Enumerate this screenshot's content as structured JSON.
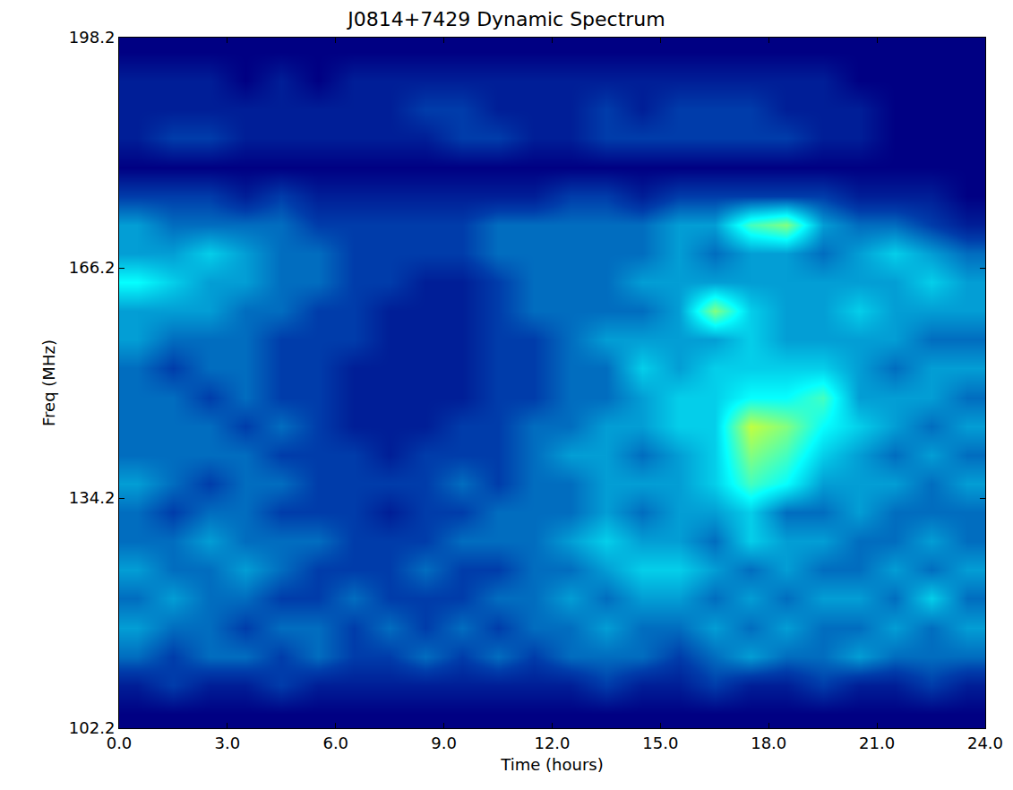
{
  "chart_data": {
    "type": "heatmap",
    "title": "J0814+7429 Dynamic Spectrum",
    "x_label": "Time (hours)",
    "y_label": "Freq (MHz)",
    "x": [
      0.5,
      1.5,
      2.5,
      3.5,
      4.5,
      5.5,
      6.5,
      7.5,
      8.5,
      9.5,
      10.5,
      11.5,
      12.5,
      13.5,
      14.5,
      15.5,
      16.5,
      17.5,
      18.5,
      19.5,
      20.5,
      21.5,
      22.5,
      23.5
    ],
    "y": [
      104.2,
      108.2,
      112.2,
      116.2,
      120.2,
      124.2,
      128.2,
      132.2,
      136.2,
      140.2,
      144.2,
      148.2,
      152.2,
      156.2,
      160.2,
      164.2,
      168.2,
      172.2,
      176.2,
      180.2,
      184.2,
      188.2,
      192.2,
      196.2
    ],
    "z": [
      [
        0,
        0,
        0,
        0,
        0,
        0,
        0,
        0,
        0,
        0,
        0,
        0,
        0,
        0,
        0,
        0,
        0,
        0,
        0,
        0,
        0,
        0,
        0,
        0
      ],
      [
        1,
        2,
        1,
        1,
        2,
        1,
        1,
        1,
        1,
        1,
        1,
        1,
        1,
        2,
        1,
        1,
        2,
        1,
        1,
        2,
        1,
        1,
        2,
        1
      ],
      [
        3,
        2,
        3,
        3,
        2,
        3,
        2,
        2,
        3,
        2,
        3,
        2,
        3,
        3,
        3,
        2,
        3,
        4,
        3,
        3,
        4,
        3,
        3,
        3
      ],
      [
        4,
        3,
        3,
        2,
        3,
        3,
        2,
        3,
        2,
        3,
        2,
        3,
        3,
        4,
        3,
        3,
        4,
        3,
        4,
        3,
        3,
        4,
        3,
        4
      ],
      [
        3,
        4,
        3,
        3,
        2,
        2,
        3,
        2,
        2,
        2,
        3,
        3,
        4,
        3,
        4,
        4,
        3,
        4,
        3,
        4,
        4,
        3,
        5,
        3
      ],
      [
        4,
        3,
        3,
        4,
        3,
        2,
        2,
        2,
        3,
        2,
        2,
        3,
        3,
        4,
        5,
        5,
        4,
        3,
        4,
        3,
        3,
        4,
        3,
        4
      ],
      [
        3,
        3,
        4,
        3,
        3,
        3,
        2,
        2,
        2,
        3,
        3,
        3,
        4,
        5,
        4,
        4,
        3,
        5,
        4,
        4,
        3,
        3,
        4,
        3
      ],
      [
        3,
        2,
        3,
        3,
        2,
        2,
        2,
        1,
        2,
        2,
        3,
        3,
        3,
        4,
        3,
        4,
        4,
        5,
        3,
        3,
        4,
        3,
        3,
        3
      ],
      [
        4,
        3,
        2,
        3,
        3,
        2,
        2,
        2,
        2,
        3,
        2,
        3,
        3,
        4,
        4,
        4,
        5,
        7,
        6,
        4,
        4,
        4,
        3,
        4
      ],
      [
        3,
        3,
        3,
        3,
        2,
        2,
        2,
        1,
        2,
        2,
        2,
        3,
        4,
        4,
        3,
        4,
        5,
        8,
        7,
        5,
        4,
        3,
        4,
        3
      ],
      [
        3,
        3,
        3,
        2,
        3,
        2,
        1,
        1,
        1,
        2,
        2,
        3,
        3,
        4,
        4,
        5,
        5,
        9,
        8,
        6,
        5,
        4,
        3,
        4
      ],
      [
        3,
        3,
        2,
        3,
        2,
        2,
        1,
        1,
        1,
        1,
        2,
        2,
        3,
        3,
        4,
        5,
        5,
        6,
        6,
        7,
        4,
        4,
        4,
        3
      ],
      [
        3,
        2,
        3,
        3,
        2,
        2,
        1,
        1,
        1,
        1,
        2,
        2,
        3,
        3,
        5,
        4,
        5,
        5,
        5,
        5,
        4,
        3,
        4,
        4
      ],
      [
        4,
        3,
        3,
        3,
        2,
        2,
        2,
        1,
        1,
        1,
        2,
        2,
        3,
        4,
        4,
        4,
        4,
        5,
        4,
        4,
        4,
        4,
        3,
        3
      ],
      [
        4,
        4,
        4,
        3,
        3,
        2,
        2,
        1,
        1,
        1,
        2,
        3,
        3,
        3,
        3,
        4,
        8,
        5,
        4,
        4,
        5,
        4,
        4,
        4
      ],
      [
        6,
        5,
        4,
        4,
        3,
        3,
        2,
        2,
        1,
        1,
        2,
        3,
        3,
        3,
        4,
        4,
        4,
        4,
        4,
        4,
        4,
        4,
        5,
        4
      ],
      [
        4,
        4,
        5,
        4,
        3,
        3,
        2,
        2,
        2,
        2,
        3,
        3,
        3,
        3,
        3,
        4,
        3,
        4,
        4,
        3,
        4,
        5,
        4,
        3
      ],
      [
        4,
        3,
        3,
        3,
        3,
        2,
        2,
        2,
        2,
        2,
        3,
        3,
        3,
        3,
        3,
        4,
        4,
        7,
        8,
        4,
        3,
        3,
        2,
        1
      ],
      [
        2,
        2,
        2,
        1,
        2,
        1,
        1,
        1,
        1,
        1,
        1,
        1,
        2,
        2,
        1,
        2,
        2,
        2,
        2,
        2,
        1,
        1,
        1,
        0
      ],
      [
        0,
        0,
        0,
        0,
        0,
        0,
        0,
        0,
        0,
        0,
        0,
        0,
        0,
        0,
        0,
        0,
        0,
        0,
        0,
        0,
        0,
        0,
        0,
        0
      ],
      [
        1,
        2,
        2,
        1,
        1,
        1,
        1,
        1,
        1,
        2,
        2,
        1,
        1,
        2,
        2,
        2,
        2,
        2,
        2,
        1,
        1,
        0,
        0,
        0
      ],
      [
        1,
        1,
        1,
        1,
        1,
        1,
        1,
        1,
        2,
        2,
        1,
        1,
        1,
        2,
        1,
        2,
        2,
        2,
        1,
        1,
        1,
        0,
        0,
        0
      ],
      [
        1,
        1,
        1,
        0,
        1,
        0,
        1,
        1,
        1,
        1,
        1,
        1,
        1,
        1,
        1,
        1,
        1,
        1,
        1,
        1,
        0,
        0,
        0,
        0
      ],
      [
        0,
        0,
        0,
        0,
        0,
        0,
        0,
        0,
        0,
        0,
        0,
        0,
        0,
        0,
        0,
        0,
        0,
        0,
        0,
        0,
        0,
        0,
        0,
        0
      ]
    ],
    "zlim": [
      0,
      16
    ],
    "xlim": [
      0,
      24
    ],
    "ylim": [
      102.2,
      198.2
    ],
    "xticks": [
      {
        "value": 0,
        "label": "0.0"
      },
      {
        "value": 3,
        "label": "3.0"
      },
      {
        "value": 6,
        "label": "6.0"
      },
      {
        "value": 9,
        "label": "9.0"
      },
      {
        "value": 12,
        "label": "12.0"
      },
      {
        "value": 15,
        "label": "15.0"
      },
      {
        "value": 18,
        "label": "18.0"
      },
      {
        "value": 21,
        "label": "21.0"
      },
      {
        "value": 24,
        "label": "24.0"
      }
    ],
    "yticks": [
      102.2,
      134.2,
      166.2,
      198.2
    ],
    "grid": false
  }
}
